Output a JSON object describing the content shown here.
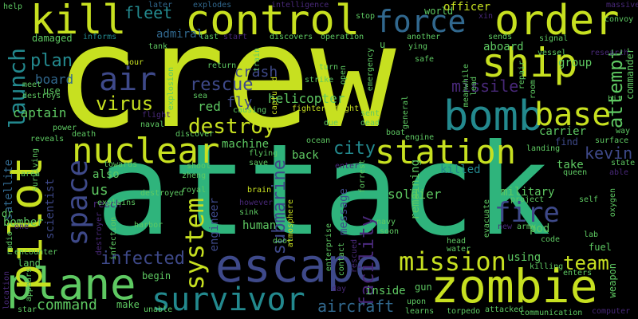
{
  "words": {
    "crew": "crew",
    "attack": "attack",
    "escape": "escape",
    "zombie": "zombie",
    "plane": "plane",
    "control": "control",
    "order": "order",
    "kill": "kill",
    "ship": "ship",
    "bomb": "bomb",
    "nuclear": "nuclear",
    "station": "station",
    "pilot": "pilot",
    "survivor": "survivor",
    "mission": "mission",
    "base": "base",
    "force": "force",
    "space": "space",
    "system": "system",
    "air": "air",
    "launch": "launch",
    "destroy": "destroy",
    "virus": "virus",
    "fire": "fire",
    "infected": "infected",
    "submarine": "submarine",
    "facility": "facility",
    "team": "team",
    "aircraft": "aircraft",
    "command": "command",
    "city": "city",
    "kevin": "kevin",
    "attempt": "attempt",
    "rescue": "rescue",
    "fleet": "fleet",
    "plan": "plan",
    "board": "board",
    "missile": "missile",
    "helicopter": "helicopter",
    "us": "us",
    "captain": "captain",
    "red": "red",
    "fly": "fly",
    "crash": "crash",
    "aboard": "aboard",
    "group": "group",
    "admiral": "admiral",
    "military": "military",
    "killed": "killed",
    "soldier": "soldier",
    "also": "also",
    "carrier": "carrier",
    "machine": "machine",
    "human": "human",
    "message": "message",
    "back": "back",
    "using": "using",
    "bomber": "bomber",
    "scientist": "scientist",
    "engineer": "engineer",
    "satellite": "satellite",
    "commander": "commander",
    "inside": "inside",
    "make": "make",
    "reach": "reach",
    "take": "take",
    "find": "find",
    "remaining": "remaining",
    "pod": "pod",
    "fuel": "fuel",
    "gun": "gun",
    "begin": "begin",
    "cause": "cause",
    "damaged": "damaged",
    "informs": "informs",
    "later": "later",
    "explodes": "explodes",
    "intelligence": "intelligence",
    "world": "world",
    "officer": "officer",
    "xin": "xin",
    "convoy": "convoy",
    "massive": "massive",
    "help": "help",
    "tank": "tank",
    "last": "last",
    "start": "start",
    "discovers": "discovers",
    "operation": "operation",
    "another": "another",
    "sends": "sends",
    "signal": "signal",
    "vessel": "vessel",
    "research": "research",
    "hour": "hour",
    "return": "return",
    "train": "train",
    "turn": "turn",
    "emergency": "emergency",
    "lead": "lead",
    "repair": "repair",
    "room": "room",
    "meet": "meet",
    "use": "use",
    "destroys": "destroys",
    "explosion": "explosion",
    "sea": "sea",
    "strike": "strike",
    "open": "open",
    "meanwhile": "meanwhile",
    "hit": "hit",
    "flight": "flight",
    "causing": "causing",
    "captured": "captured",
    "fighter": "fighter",
    "fight": "fight",
    "dead": "dead",
    "general": "general",
    "power": "power",
    "naval": "naval",
    "discover": "discover",
    "due": "due",
    "sent": "sent",
    "boat": "boat",
    "engine": "engine",
    "reveals": "reveals",
    "death": "death",
    "flying": "flying",
    "ocean": "ocean",
    "landing": "landing",
    "surface": "surface",
    "way": "way",
    "surviving": "surviving",
    "towards": "towards",
    "shoot": "shoot",
    "save": "save",
    "area": "area",
    "zheng": "zheng",
    "state": "state",
    "able": "able",
    "enter": "enter",
    "queen": "queen",
    "self": "self",
    "oxygen": "oxygen",
    "explains": "explains",
    "destroyed": "destroyed",
    "royal": "royal",
    "brain": "brain",
    "however": "however",
    "sink": "sink",
    "atmosphere": "atmosphere",
    "navy": "navy",
    "project": "project",
    "evacuate": "evacuate",
    "radio": "radio",
    "destroyer": "destroyer",
    "infection": "infection",
    "harbor": "harbor",
    "door": "door",
    "enterprise": "enterprise",
    "contact": "contact",
    "rescued": "rescued",
    "soon": "soon",
    "head": "head",
    "water": "water",
    "new": "new",
    "army": "army",
    "code": "code",
    "lab": "lab",
    "weapon": "weapon",
    "killing": "killing",
    "enters": "enters",
    "encounter": "encounter",
    "land": "land",
    "location": "location",
    "appears": "appears",
    "star": "star",
    "unable": "unable",
    "day": "day",
    "upon": "upon",
    "learns": "learns",
    "torpedo": "torpedo",
    "attacked": "attacked",
    "communication": "communication",
    "computer": "computer",
    "one": "one",
    "dr": "dr",
    "u": "u",
    "ying": "ying",
    "safe": "safe",
    "forrest": "forrest",
    "stop": "stop"
  },
  "colors": {
    "background": "#000000",
    "yellow_green": "#c7e020",
    "green": "#2fb47c",
    "teal": "#23898e",
    "light_green": "#5ec962",
    "blue": "#3e4989",
    "slate": "#31688e",
    "purple": "#482878",
    "dark_purple": "#440154"
  }
}
